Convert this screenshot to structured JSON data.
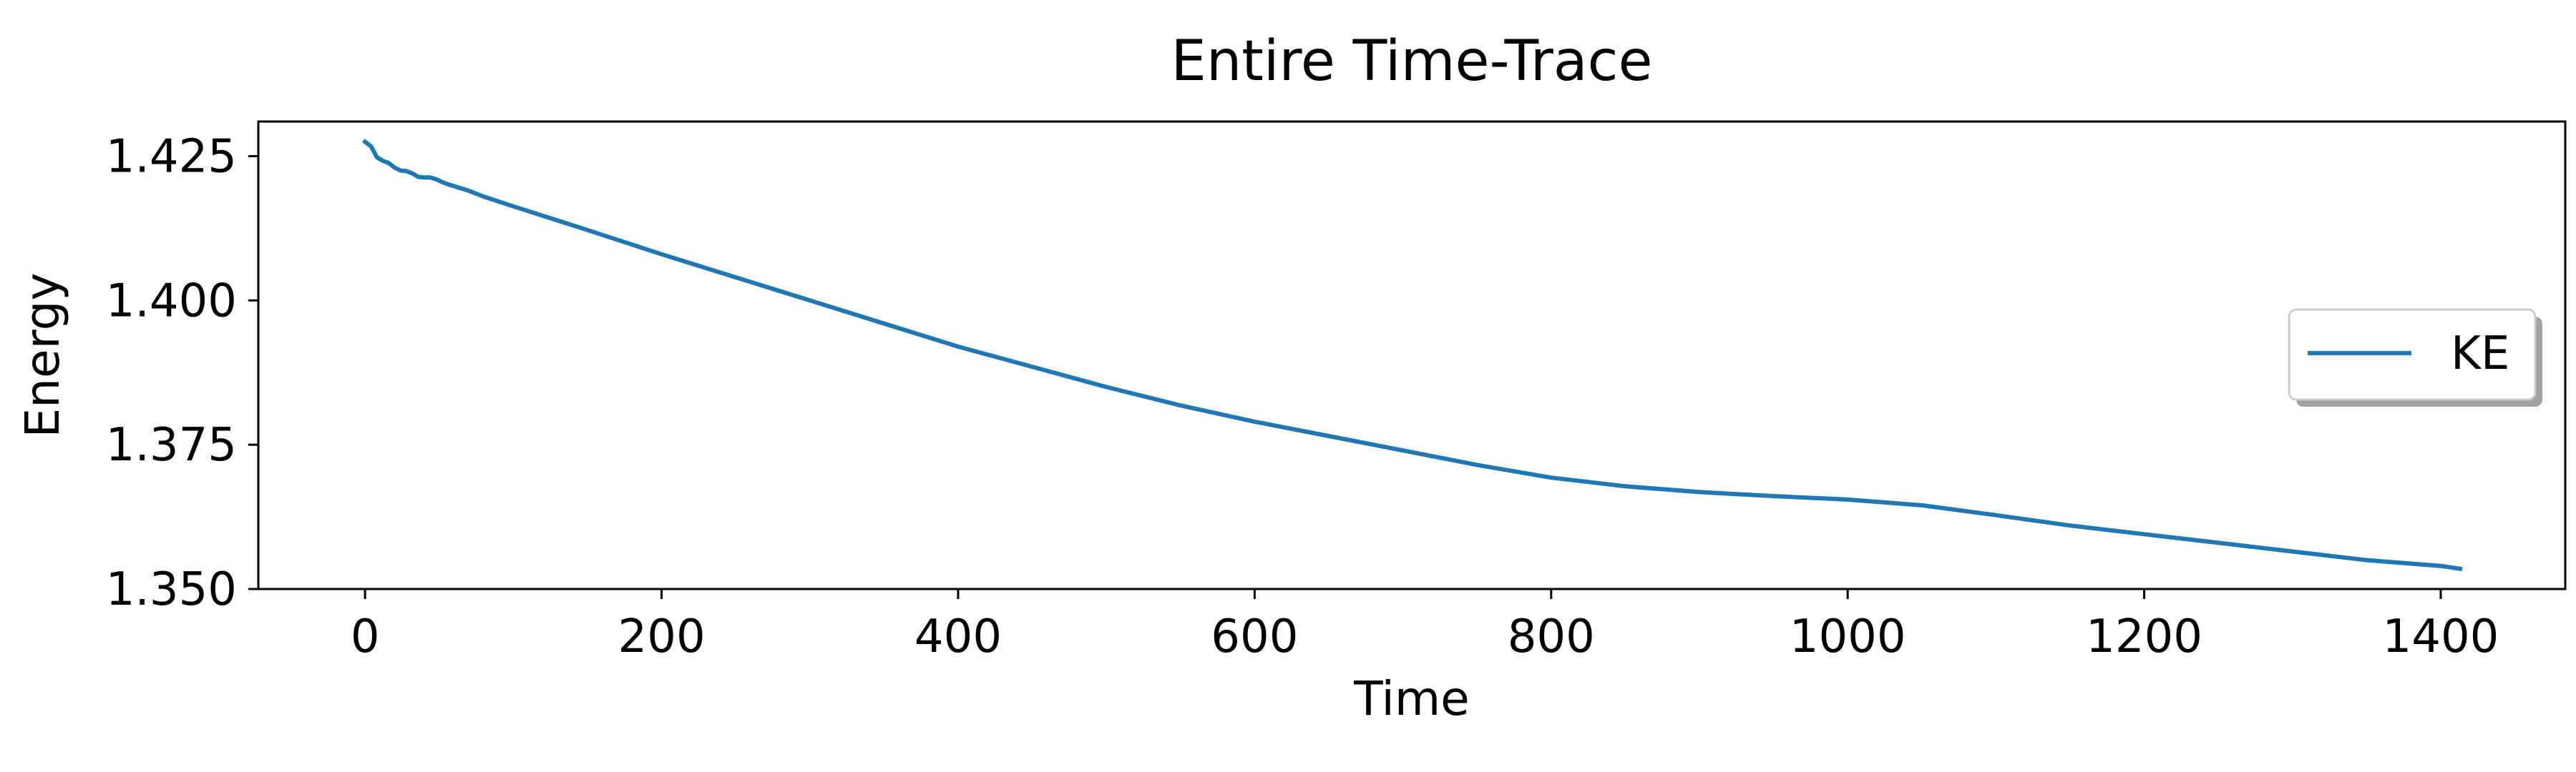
{
  "chart_data": {
    "type": "line",
    "title": "Entire Time-Trace",
    "xlabel": "Time",
    "ylabel": "Energy",
    "xlim": [
      -72,
      1484
    ],
    "ylim": [
      1.35,
      1.431
    ],
    "xticks": [
      0,
      200,
      400,
      600,
      800,
      1000,
      1200,
      1400
    ],
    "yticks": [
      1.35,
      1.375,
      1.4,
      1.425
    ],
    "xtick_labels": [
      "0",
      "200",
      "400",
      "600",
      "800",
      "1000",
      "1200",
      "1400"
    ],
    "ytick_labels": [
      "1.350",
      "1.375",
      "1.400",
      "1.425"
    ],
    "grid": false,
    "legend_position": "center-right",
    "series": [
      {
        "name": "KE",
        "color": "#1f77b4",
        "x": [
          0,
          4,
          8,
          12,
          16,
          20,
          24,
          28,
          32,
          36,
          40,
          44,
          48,
          52,
          56,
          60,
          70,
          80,
          100,
          150,
          200,
          250,
          300,
          350,
          400,
          450,
          500,
          550,
          600,
          650,
          700,
          750,
          800,
          850,
          900,
          950,
          1000,
          1050,
          1100,
          1150,
          1200,
          1250,
          1300,
          1350,
          1400,
          1413
        ],
        "y": [
          1.4275,
          1.4267,
          1.4248,
          1.4242,
          1.4238,
          1.423,
          1.4225,
          1.4224,
          1.422,
          1.4214,
          1.4213,
          1.4213,
          1.421,
          1.4205,
          1.4201,
          1.4198,
          1.419,
          1.418,
          1.4163,
          1.4122,
          1.408,
          1.404,
          1.4,
          1.396,
          1.392,
          1.3885,
          1.385,
          1.3818,
          1.379,
          1.3765,
          1.374,
          1.3715,
          1.3693,
          1.3678,
          1.3668,
          1.3661,
          1.3655,
          1.3645,
          1.3628,
          1.361,
          1.3595,
          1.358,
          1.3565,
          1.355,
          1.354,
          1.3535
        ]
      }
    ]
  }
}
